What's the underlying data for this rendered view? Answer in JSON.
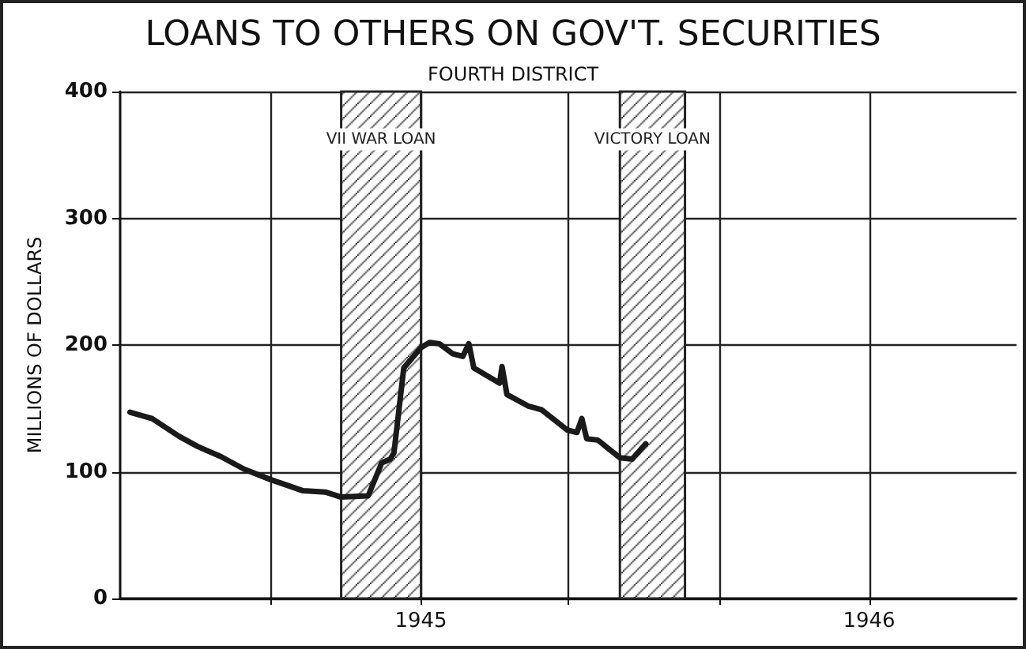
{
  "chart_data": {
    "type": "line",
    "title": "LOANS TO OTHERS ON GOV'T. SECURITIES",
    "subtitle": "FOURTH DISTRICT",
    "ylabel": "MILLIONS OF DOLLARS",
    "x": [
      "1944-05-09",
      "1944-05-27",
      "1944-06-18",
      "1944-07-03",
      "1944-07-22",
      "1944-08-10",
      "1944-08-31",
      "1944-09-27",
      "1944-10-15",
      "1944-10-28",
      "1944-11-19",
      "1944-11-30",
      "1944-12-07",
      "1944-12-10",
      "1944-12-18",
      "1945-01-01",
      "1945-01-08",
      "1945-01-16",
      "1945-01-27",
      "1945-02-04",
      "1945-02-09",
      "1945-02-13",
      "1945-03-06",
      "1945-03-08",
      "1945-03-12",
      "1945-03-29",
      "1945-04-09",
      "1945-04-30",
      "1945-05-08",
      "1945-05-12",
      "1945-05-16",
      "1945-05-25",
      "1945-06-12",
      "1945-06-22",
      "1945-07-03"
    ],
    "series": [
      {
        "color": "#1a1a1a",
        "values": [
          147,
          142,
          128,
          120,
          112,
          102,
          94,
          85,
          84,
          80,
          81,
          107,
          110,
          115,
          182,
          198,
          202,
          201,
          193,
          191,
          201,
          182,
          170,
          183,
          161,
          152,
          149,
          133,
          131,
          142,
          126,
          125,
          111,
          110,
          122
        ]
      }
    ],
    "xlim": [
      "1944-05-01",
      "1946-05-01"
    ],
    "xticks": [
      {
        "value": "1944-09-01",
        "label": null
      },
      {
        "value": "1945-01-01",
        "label": "1945"
      },
      {
        "value": "1945-05-01",
        "label": null
      },
      {
        "value": "1945-09-01",
        "label": null
      },
      {
        "value": "1946-01-01",
        "label": "1946"
      }
    ],
    "ylim": [
      0,
      400
    ],
    "yticks": [
      0,
      100,
      200,
      300,
      400
    ],
    "bands": [
      {
        "axis": "x",
        "from": "1944-10-28",
        "to": "1945-01-01",
        "label": "VII WAR LOAN",
        "color": "#222222"
      },
      {
        "axis": "x",
        "from": "1945-06-12",
        "to": "1945-08-04",
        "label": "VICTORY LOAN",
        "color": "#222222"
      }
    ],
    "grid": true,
    "marker": "none",
    "line_style": "solid"
  }
}
